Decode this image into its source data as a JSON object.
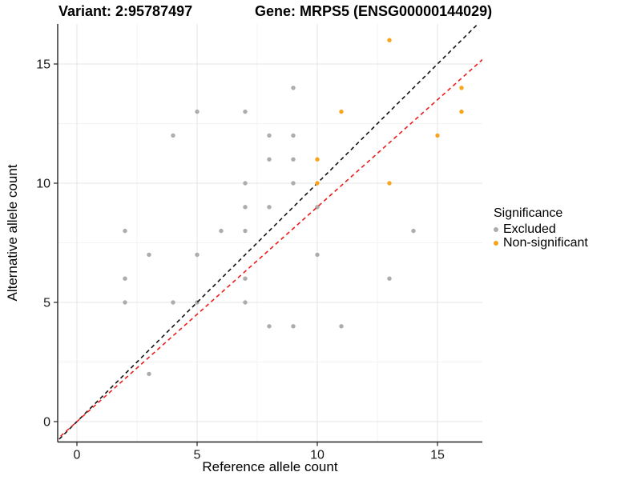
{
  "chart_data": {
    "type": "scatter",
    "title_left": "Variant: 2:95787497",
    "title_right": "Gene: MRPS5 (ENSG00000144029)",
    "xlabel": "Reference allele count",
    "ylabel": "Alternative allele count",
    "x_ticks": [
      0,
      5,
      10,
      15
    ],
    "y_ticks": [
      0,
      5,
      10,
      15
    ],
    "x_minor": [
      2.5,
      7.5,
      12.5
    ],
    "y_minor": [
      2.5,
      7.5,
      12.5
    ],
    "xlim": [
      -0.8,
      16.9
    ],
    "ylim": [
      -0.85,
      16.7
    ],
    "grid": true,
    "legend_title": "Significance",
    "legend_position": "right",
    "series": [
      {
        "name": "Excluded",
        "color": "#acacac",
        "points": [
          [
            2,
            5
          ],
          [
            2,
            6
          ],
          [
            2,
            8
          ],
          [
            3,
            2
          ],
          [
            3,
            7
          ],
          [
            4,
            5
          ],
          [
            4,
            12
          ],
          [
            5,
            5
          ],
          [
            5,
            7
          ],
          [
            5,
            13
          ],
          [
            6,
            8
          ],
          [
            7,
            5
          ],
          [
            7,
            6
          ],
          [
            7,
            8
          ],
          [
            7,
            9
          ],
          [
            7,
            10
          ],
          [
            7,
            13
          ],
          [
            8,
            4
          ],
          [
            8,
            9
          ],
          [
            8,
            11
          ],
          [
            8,
            12
          ],
          [
            9,
            4
          ],
          [
            9,
            10
          ],
          [
            9,
            11
          ],
          [
            9,
            12
          ],
          [
            9,
            14
          ],
          [
            10,
            7
          ],
          [
            10,
            9
          ],
          [
            11,
            4
          ],
          [
            13,
            6
          ],
          [
            14,
            8
          ]
        ]
      },
      {
        "name": "Non-significant",
        "color": "#f7a51d",
        "points": [
          [
            10,
            10
          ],
          [
            10,
            11
          ],
          [
            11,
            13
          ],
          [
            13,
            10
          ],
          [
            13,
            16
          ],
          [
            15,
            12
          ],
          [
            16,
            13
          ],
          [
            16,
            14
          ]
        ]
      }
    ],
    "lines": [
      {
        "name": "identity-line",
        "slope": 1,
        "intercept": 0,
        "color": "#111111",
        "dash": "5,4"
      },
      {
        "name": "expected-ratio-line",
        "slope": 0.9,
        "intercept": 0,
        "color": "#ec1c1c",
        "dash": "5,4"
      }
    ]
  }
}
